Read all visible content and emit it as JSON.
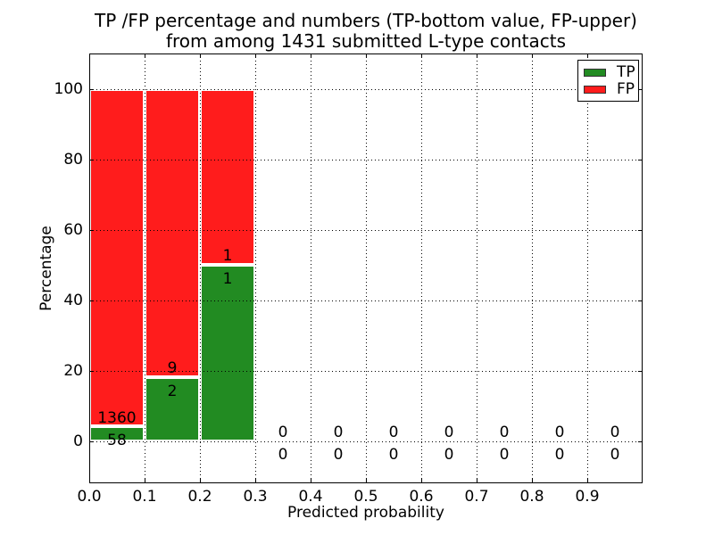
{
  "title": {
    "line1": "TP /FP percentage and numbers (TP-bottom value, FP-upper)",
    "line2": "from among 1431 submitted L-type contacts"
  },
  "colors": {
    "tp_green": "#228b22",
    "fp_red": "#ff1c1c",
    "axis_black": "#000000",
    "background": "#ffffff"
  },
  "chart_data": {
    "type": "bar",
    "stacked": true,
    "title": "TP /FP percentage and numbers (TP-bottom value, FP-upper) from among 1431 submitted L-type contacts",
    "xlabel": "Predicted probability",
    "ylabel": "Percentage",
    "xlim": [
      0.0,
      1.0
    ],
    "ylim": [
      -12,
      110
    ],
    "grid": true,
    "total_submitted": 1431,
    "x_ticks": [
      {
        "label": "0.0",
        "v": 0.0
      },
      {
        "label": "0.1",
        "v": 0.1
      },
      {
        "label": "0.2",
        "v": 0.2
      },
      {
        "label": "0.3",
        "v": 0.3
      },
      {
        "label": "0.4",
        "v": 0.4
      },
      {
        "label": "0.5",
        "v": 0.5
      },
      {
        "label": "0.6",
        "v": 0.6
      },
      {
        "label": "0.7",
        "v": 0.7
      },
      {
        "label": "0.8",
        "v": 0.8
      },
      {
        "label": "0.9",
        "v": 0.9
      }
    ],
    "y_ticks": [
      {
        "label": "0",
        "v": 0
      },
      {
        "label": "20",
        "v": 20
      },
      {
        "label": "40",
        "v": 40
      },
      {
        "label": "60",
        "v": 60
      },
      {
        "label": "80",
        "v": 80
      },
      {
        "label": "100",
        "v": 100
      }
    ],
    "legend": {
      "position": "upper right",
      "entries": [
        {
          "label": "TP",
          "color": "#228b22"
        },
        {
          "label": "FP",
          "color": "#ff1c1c"
        }
      ]
    },
    "bins": [
      {
        "x0": 0.0,
        "x1": 0.1,
        "tp_count": 58,
        "fp_count": 1360,
        "tp_pct": 4.09,
        "fp_pct": 95.91
      },
      {
        "x0": 0.1,
        "x1": 0.2,
        "tp_count": 2,
        "fp_count": 9,
        "tp_pct": 18.18,
        "fp_pct": 81.82
      },
      {
        "x0": 0.2,
        "x1": 0.3,
        "tp_count": 1,
        "fp_count": 1,
        "tp_pct": 50.0,
        "fp_pct": 50.0
      },
      {
        "x0": 0.3,
        "x1": 0.4,
        "tp_count": 0,
        "fp_count": 0,
        "tp_pct": 0,
        "fp_pct": 0
      },
      {
        "x0": 0.4,
        "x1": 0.5,
        "tp_count": 0,
        "fp_count": 0,
        "tp_pct": 0,
        "fp_pct": 0
      },
      {
        "x0": 0.5,
        "x1": 0.6,
        "tp_count": 0,
        "fp_count": 0,
        "tp_pct": 0,
        "fp_pct": 0
      },
      {
        "x0": 0.6,
        "x1": 0.7,
        "tp_count": 0,
        "fp_count": 0,
        "tp_pct": 0,
        "fp_pct": 0
      },
      {
        "x0": 0.7,
        "x1": 0.8,
        "tp_count": 0,
        "fp_count": 0,
        "tp_pct": 0,
        "fp_pct": 0
      },
      {
        "x0": 0.8,
        "x1": 0.9,
        "tp_count": 0,
        "fp_count": 0,
        "tp_pct": 0,
        "fp_pct": 0
      },
      {
        "x0": 0.9,
        "x1": 1.0,
        "tp_count": 0,
        "fp_count": 0,
        "tp_pct": 0,
        "fp_pct": 0
      }
    ]
  }
}
